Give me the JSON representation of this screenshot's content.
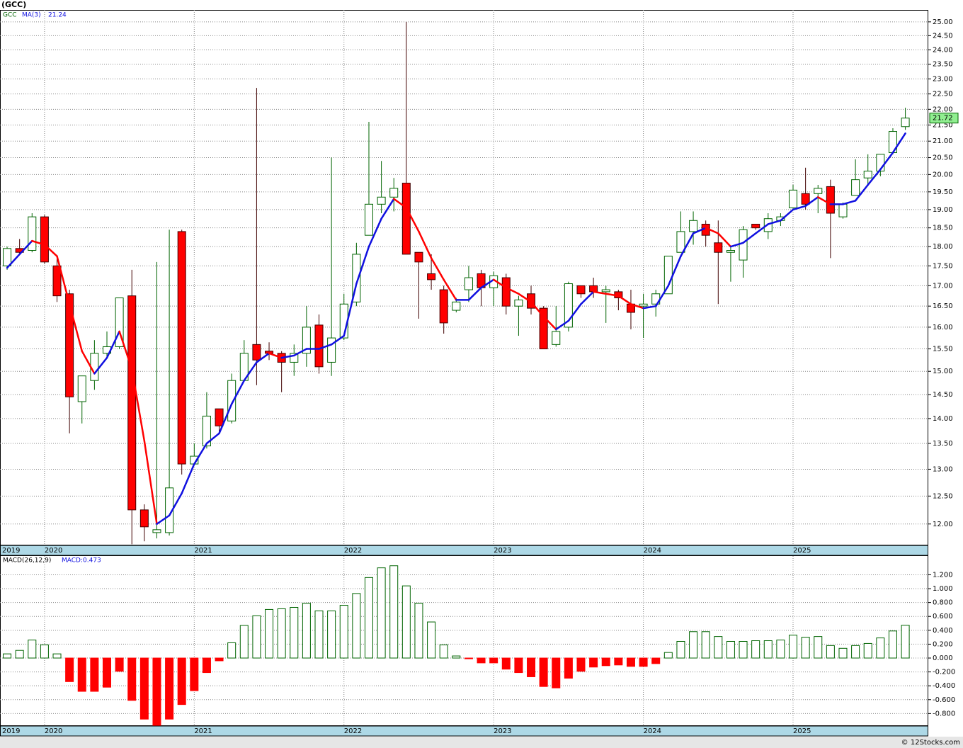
{
  "chart_data": [
    {
      "type": "candlestick",
      "title": "(GCC)",
      "log_scale": true,
      "grid": true,
      "ylim": [
        11.63,
        25.44
      ],
      "yticks": [
        {
          "value": 12,
          "label": "12.00"
        },
        {
          "value": 12.5,
          "label": "12.50"
        },
        {
          "value": 13,
          "label": "13.00"
        },
        {
          "value": 13.5,
          "label": "13.50"
        },
        {
          "value": 14,
          "label": "14.00"
        },
        {
          "value": 14.5,
          "label": "14.50"
        },
        {
          "value": 15,
          "label": "15.00"
        },
        {
          "value": 15.5,
          "label": "15.50"
        },
        {
          "value": 16,
          "label": "16.00"
        },
        {
          "value": 16.5,
          "label": "16.50"
        },
        {
          "value": 17,
          "label": "17.00"
        },
        {
          "value": 17.5,
          "label": "17.50"
        },
        {
          "value": 18,
          "label": "18.00"
        },
        {
          "value": 18.5,
          "label": "18.50"
        },
        {
          "value": 19,
          "label": "19.00"
        },
        {
          "value": 19.5,
          "label": "19.50"
        },
        {
          "value": 20,
          "label": "20.00"
        },
        {
          "value": 20.5,
          "label": "20.50"
        },
        {
          "value": 21,
          "label": "21.00"
        },
        {
          "value": 21.5,
          "label": "21.50"
        },
        {
          "value": 22,
          "label": "22.00"
        },
        {
          "value": 22.5,
          "label": "22.50"
        },
        {
          "value": 23,
          "label": "23.00"
        },
        {
          "value": 23.5,
          "label": "23.50"
        },
        {
          "value": 24,
          "label": "24.00"
        },
        {
          "value": 24.5,
          "label": "24.50"
        },
        {
          "value": 25,
          "label": "25.00"
        }
      ],
      "xlim": [
        -0.57,
        73.84
      ],
      "xticks": [
        {
          "value": -0.4,
          "label": "2019"
        },
        {
          "value": 3,
          "label": "2020"
        },
        {
          "value": 15,
          "label": "2021"
        },
        {
          "value": 27,
          "label": "2022"
        },
        {
          "value": 39,
          "label": "2023"
        },
        {
          "value": 51,
          "label": "2024"
        },
        {
          "value": 63,
          "label": "2025"
        }
      ],
      "series": [
        {
          "name": "GCC",
          "up_color": "#006400",
          "down_color": "#ff0000",
          "open": [
            17.5,
            17.95,
            17.9,
            18.8,
            17.5,
            16.8,
            14.35,
            14.8,
            15.4,
            15.55,
            16.75,
            12.25,
            11.85,
            11.85,
            18.4,
            13.1,
            13.45,
            14.2,
            13.95,
            14.8,
            15.6,
            15.45,
            15.4,
            15.2,
            15.4,
            16.05,
            15.2,
            15.75,
            16.6,
            18.3,
            19.15,
            19.35,
            19.75,
            17.85,
            17.3,
            16.9,
            16.4,
            16.9,
            17.3,
            16.95,
            17.2,
            16.5,
            16.8,
            16.45,
            15.6,
            16.0,
            17.0,
            17.0,
            16.85,
            16.85,
            16.55,
            16.5,
            16.55,
            16.8,
            17.85,
            18.4,
            18.6,
            18.1,
            17.85,
            17.65,
            18.6,
            18.4,
            18.7,
            19.05,
            19.45,
            19.45,
            19.65,
            18.8,
            19.4,
            19.9,
            20.1,
            20.65,
            21.45
          ],
          "high": [
            18.0,
            18.2,
            18.9,
            18.85,
            17.7,
            16.9,
            14.9,
            15.7,
            15.9,
            16.7,
            17.4,
            12.35,
            17.6,
            18.45,
            18.45,
            13.5,
            14.55,
            14.2,
            14.95,
            15.7,
            22.7,
            15.65,
            15.45,
            15.6,
            16.5,
            16.3,
            20.5,
            16.8,
            18.1,
            21.6,
            20.4,
            19.9,
            25.0,
            17.85,
            17.8,
            17.0,
            16.7,
            17.5,
            17.4,
            17.35,
            17.3,
            16.75,
            17.0,
            16.5,
            16.5,
            17.1,
            17.0,
            17.2,
            17.0,
            16.9,
            16.9,
            16.8,
            16.9,
            17.75,
            18.95,
            18.95,
            18.7,
            18.7,
            18.0,
            18.55,
            18.6,
            18.9,
            18.9,
            19.7,
            20.2,
            19.7,
            19.85,
            19.2,
            20.45,
            20.6,
            20.6,
            21.4,
            22.05
          ],
          "low": [
            17.4,
            17.8,
            17.85,
            17.55,
            16.6,
            13.7,
            13.9,
            14.6,
            15.3,
            15.5,
            11.65,
            11.7,
            11.75,
            11.8,
            12.9,
            13.1,
            13.4,
            13.7,
            13.9,
            14.8,
            14.7,
            15.25,
            14.55,
            14.9,
            15.1,
            14.95,
            14.9,
            15.7,
            16.5,
            18.3,
            18.9,
            18.95,
            17.8,
            16.2,
            16.9,
            15.85,
            16.35,
            16.6,
            16.5,
            16.5,
            16.3,
            15.8,
            16.3,
            15.5,
            15.55,
            15.9,
            16.7,
            16.7,
            16.1,
            16.4,
            15.95,
            15.75,
            16.25,
            16.8,
            17.85,
            18.05,
            18.0,
            16.55,
            17.1,
            17.2,
            18.45,
            18.2,
            18.55,
            19.0,
            19.0,
            18.9,
            17.7,
            18.75,
            19.4,
            19.7,
            19.95,
            20.6,
            21.35
          ],
          "close": [
            17.95,
            17.85,
            18.8,
            17.6,
            16.75,
            14.45,
            14.9,
            15.4,
            15.55,
            16.7,
            12.25,
            11.95,
            11.9,
            12.65,
            13.1,
            13.25,
            14.05,
            13.85,
            14.8,
            15.4,
            15.25,
            15.4,
            15.2,
            15.4,
            16.0,
            15.1,
            15.75,
            16.55,
            17.8,
            19.15,
            19.35,
            19.6,
            17.8,
            17.6,
            17.15,
            16.1,
            16.6,
            17.2,
            16.95,
            17.25,
            16.5,
            16.65,
            16.45,
            15.5,
            15.9,
            17.05,
            16.8,
            16.85,
            16.9,
            16.7,
            16.35,
            16.55,
            16.8,
            17.75,
            18.4,
            18.7,
            18.3,
            17.85,
            17.9,
            18.45,
            18.5,
            18.75,
            18.8,
            19.55,
            19.15,
            19.6,
            18.9,
            19.15,
            19.85,
            20.1,
            20.6,
            21.3,
            21.72
          ]
        },
        {
          "name": "MA(3)",
          "up_color": "#1010e0",
          "down_color": "#ff0000",
          "values": [
            17.45,
            17.8,
            18.15,
            18.05,
            17.75,
            16.55,
            15.45,
            14.95,
            15.3,
            15.9,
            15.05,
            13.55,
            12.0,
            12.15,
            12.55,
            13.1,
            13.5,
            13.7,
            14.3,
            14.8,
            15.2,
            15.4,
            15.3,
            15.35,
            15.5,
            15.5,
            15.6,
            15.8,
            17.05,
            18.0,
            18.75,
            19.3,
            19.05,
            18.4,
            17.7,
            17.15,
            16.65,
            16.65,
            16.95,
            17.15,
            16.95,
            16.8,
            16.6,
            16.25,
            15.95,
            16.15,
            16.55,
            16.85,
            16.8,
            16.75,
            16.55,
            16.45,
            16.5,
            17.0,
            17.75,
            18.35,
            18.5,
            18.35,
            18.0,
            18.1,
            18.35,
            18.6,
            18.7,
            19.0,
            19.1,
            19.35,
            19.15,
            19.15,
            19.25,
            19.7,
            20.15,
            20.65,
            21.24
          ]
        }
      ]
    },
    {
      "type": "bar",
      "grid": true,
      "ylim": [
        -0.98,
        1.47
      ],
      "yticks": [
        {
          "value": -0.8,
          "label": "-0.800"
        },
        {
          "value": -0.6,
          "label": "-0.600"
        },
        {
          "value": -0.4,
          "label": "-0.400"
        },
        {
          "value": -0.2,
          "label": "-0.200"
        },
        {
          "value": 0,
          "label": "0.000"
        },
        {
          "value": 0.2,
          "label": "0.200"
        },
        {
          "value": 0.4,
          "label": "0.400"
        },
        {
          "value": 0.6,
          "label": "0.600"
        },
        {
          "value": 0.8,
          "label": "0.800"
        },
        {
          "value": 1,
          "label": "1.000"
        },
        {
          "value": 1.2,
          "label": "1.200"
        }
      ],
      "xlim": [
        -0.57,
        73.84
      ],
      "xticks": [
        {
          "value": -0.4,
          "label": "2019"
        },
        {
          "value": 3,
          "label": "2020"
        },
        {
          "value": 15,
          "label": "2021"
        },
        {
          "value": 27,
          "label": "2022"
        },
        {
          "value": 39,
          "label": "2023"
        },
        {
          "value": 51,
          "label": "2024"
        },
        {
          "value": 63,
          "label": "2025"
        }
      ],
      "series": [
        {
          "name": "MACD(26,12,9)",
          "up_color": "#006400",
          "down_color": "#ff0000",
          "values": [
            0.06,
            0.11,
            0.26,
            0.19,
            0.06,
            -0.34,
            -0.48,
            -0.48,
            -0.42,
            -0.19,
            -0.61,
            -0.88,
            -0.97,
            -0.88,
            -0.67,
            -0.47,
            -0.21,
            -0.04,
            0.22,
            0.47,
            0.61,
            0.7,
            0.71,
            0.73,
            0.79,
            0.68,
            0.68,
            0.76,
            0.93,
            1.16,
            1.3,
            1.33,
            1.04,
            0.79,
            0.52,
            0.19,
            0.03,
            -0.01,
            -0.07,
            -0.07,
            -0.16,
            -0.21,
            -0.27,
            -0.41,
            -0.43,
            -0.29,
            -0.19,
            -0.13,
            -0.11,
            -0.1,
            -0.12,
            -0.12,
            -0.08,
            0.08,
            0.24,
            0.38,
            0.38,
            0.31,
            0.24,
            0.24,
            0.25,
            0.25,
            0.26,
            0.33,
            0.3,
            0.31,
            0.18,
            0.14,
            0.18,
            0.21,
            0.29,
            0.39,
            0.473
          ],
          "value_labels": [
            null,
            null,
            null,
            null,
            null,
            null,
            null,
            null,
            null,
            null,
            null,
            null,
            null,
            null,
            null,
            null,
            null,
            null,
            null,
            null,
            null,
            null,
            null,
            null,
            null,
            null,
            null,
            null,
            null,
            null,
            null,
            null,
            null,
            null,
            null,
            null,
            null,
            null,
            null,
            null,
            null,
            null,
            null,
            null,
            null,
            null,
            null,
            null,
            null,
            null,
            null,
            null,
            null,
            null,
            null,
            null,
            null,
            null,
            null,
            null,
            null,
            null,
            null,
            null,
            null,
            null,
            null,
            null,
            null,
            null,
            null,
            null,
            "MACD:0.473"
          ]
        }
      ]
    }
  ],
  "footer": "© 12Stocks.com"
}
